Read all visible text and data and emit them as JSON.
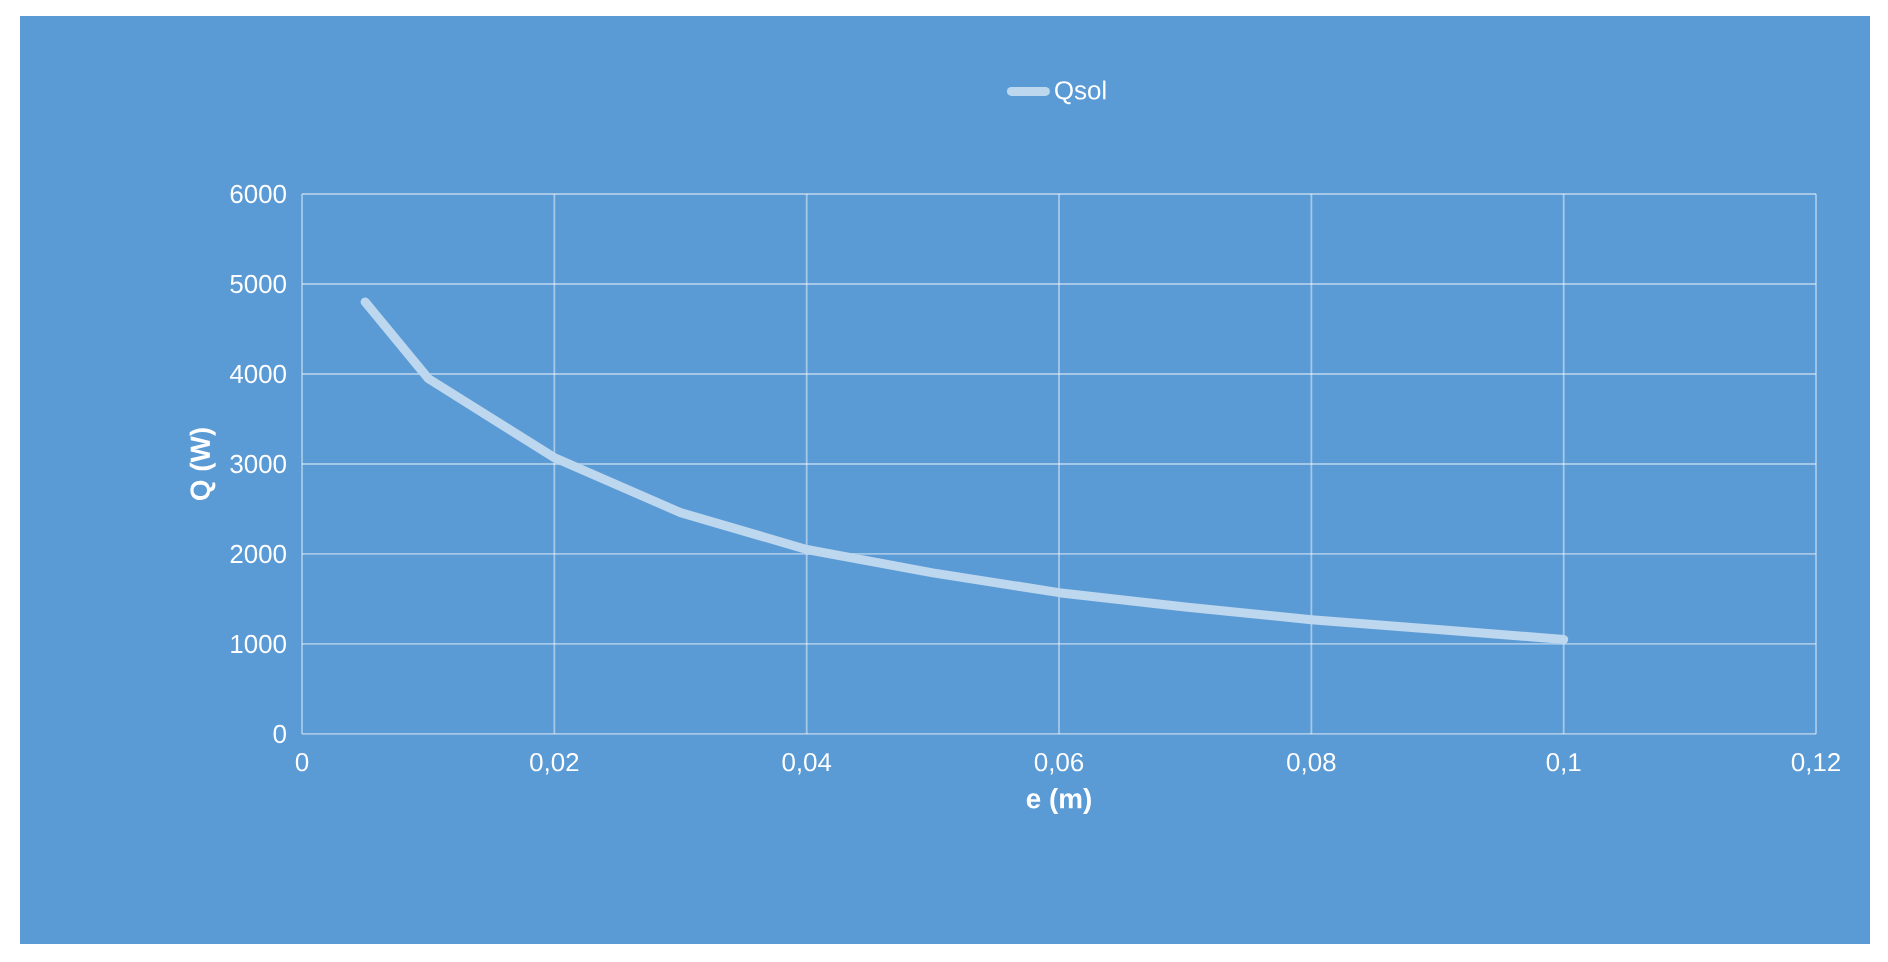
{
  "chart_data": {
    "type": "line",
    "xlabel": "e (m)",
    "ylabel": "Q (W)",
    "series": [
      {
        "name": "Qsol",
        "color": "#bdd7ee",
        "x": [
          0.005,
          0.01,
          0.02,
          0.03,
          0.04,
          0.05,
          0.06,
          0.07,
          0.08,
          0.09,
          0.1
        ],
        "values": [
          4800,
          3950,
          3070,
          2460,
          2050,
          1790,
          1570,
          1410,
          1270,
          1160,
          1050
        ]
      }
    ],
    "xlim": [
      0,
      0.12
    ],
    "ylim": [
      0,
      6000
    ],
    "xticks": [
      0,
      {
        "value": 0.02,
        "label": "0,02"
      },
      {
        "value": 0.04,
        "label": "0,04"
      },
      {
        "value": 0.06,
        "label": "0,06"
      },
      {
        "value": 0.08,
        "label": "0,08"
      },
      {
        "value": 0.1,
        "label": "0,1"
      },
      {
        "value": 0.12,
        "label": "0,12"
      }
    ],
    "yticks": [
      0,
      1000,
      2000,
      3000,
      4000,
      5000,
      6000
    ],
    "grid": true,
    "legend": "top",
    "marker": "none",
    "line_style": "solid"
  }
}
